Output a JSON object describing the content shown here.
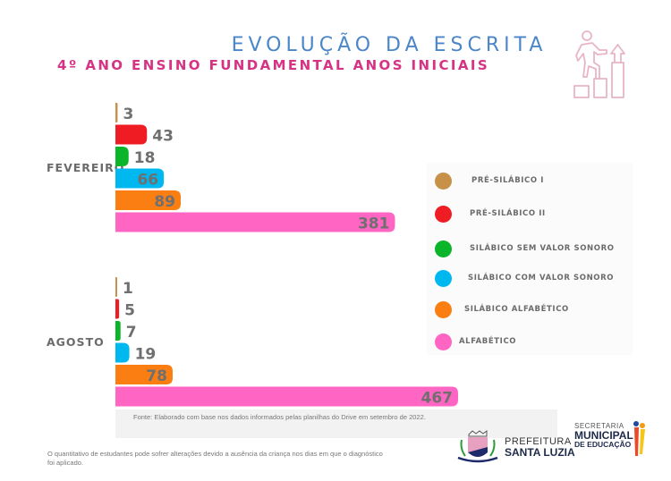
{
  "header": {
    "title": "EVOLUÇÃO  DA ESCRITA",
    "subtitle": "4º ANO ENSINO FUNDAMENTAL ANOS INICIAIS",
    "icon": "person-climbing-steps-icon"
  },
  "chart_data": {
    "type": "bar",
    "orientation": "horizontal",
    "title": "EVOLUÇÃO DA ESCRITA - 4º ANO ENSINO FUNDAMENTAL ANOS INICIAIS",
    "categories": [
      "FEVEREIRO",
      "AGOSTO"
    ],
    "series": [
      {
        "name": "PRÉ-SILÁBICO I",
        "color": "#c8914a",
        "values": [
          3,
          1
        ]
      },
      {
        "name": "PRÉ-SILÁBICO II",
        "color": "#f01c23",
        "values": [
          43,
          5
        ]
      },
      {
        "name": "SILÁBICO SEM VALOR SONORO",
        "color": "#0bb52a",
        "values": [
          18,
          7
        ]
      },
      {
        "name": "SILÁBICO COM VALOR SONORO",
        "color": "#00b8f0",
        "values": [
          66,
          19
        ]
      },
      {
        "name": "SILÁBICO ALFABÉTICO",
        "color": "#fb7e12",
        "values": [
          89,
          78
        ]
      },
      {
        "name": "ALFABÉTICO",
        "color": "#ff66c4",
        "values": [
          381,
          467
        ]
      }
    ],
    "xlabel": "",
    "ylabel": "",
    "xlim": [
      0,
      467
    ],
    "grid": false,
    "data_labels": true,
    "legend_position": "right"
  },
  "legend": {
    "items": [
      {
        "label": "PRÉ-SILÁBICO I"
      },
      {
        "label": "PRÉ-SILÁBICO II"
      },
      {
        "label": "SILÁBICO SEM VALOR SONORO"
      },
      {
        "label": "SILÁBICO COM VALOR SONORO"
      },
      {
        "label": "SILÁBICO ALFABÉTICO"
      },
      {
        "label": "ALFABÉTICO"
      }
    ]
  },
  "footer": {
    "source": "Fonte: Elaborado com base nos dados informados pelas planilhas do Drive em  setembro de 2022.",
    "note": "O quantitativo de estudantes pode sofrer alterações devido a ausência da criança nos dias em que o diagnóstico foi aplicado.",
    "logo_prefeitura_top": "PREFEITURA",
    "logo_prefeitura_bottom": "SANTA LUZIA",
    "logo_secretaria_top": "SECRETARIA",
    "logo_secretaria_mid": "MUNICIPAL",
    "logo_secretaria_bottom": "DE EDUCAÇÃO"
  }
}
